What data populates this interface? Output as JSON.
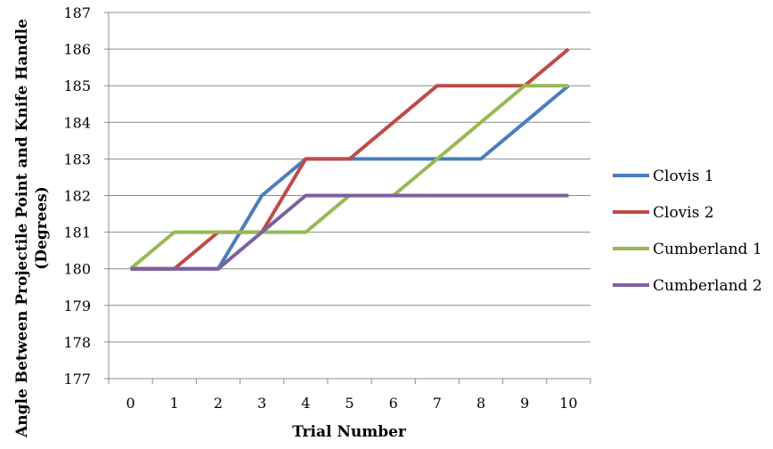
{
  "chart_data": {
    "type": "line",
    "title": "",
    "xlabel": "Trial Number",
    "ylabel_line1": "Angle Between Projectile Point and Knife Handle",
    "ylabel_line2": "(Degrees)",
    "x": [
      0,
      1,
      2,
      3,
      4,
      5,
      6,
      7,
      8,
      9,
      10
    ],
    "x_tick_labels": [
      "0",
      "1",
      "2",
      "3",
      "4",
      "5",
      "6",
      "7",
      "8",
      "9",
      "10"
    ],
    "ylim": [
      177,
      187
    ],
    "y_tick_labels": [
      "177",
      "178",
      "179",
      "180",
      "181",
      "182",
      "183",
      "184",
      "185",
      "186",
      "187"
    ],
    "grid": "horizontal",
    "legend_position": "right",
    "series": [
      {
        "name": "Clovis 1",
        "color": "#4a7ebb",
        "values": [
          180,
          180,
          180,
          182,
          183,
          183,
          183,
          183,
          183,
          184,
          185
        ]
      },
      {
        "name": "Clovis 2",
        "color": "#be4b48",
        "values": [
          180,
          180,
          181,
          181,
          183,
          183,
          184,
          185,
          185,
          185,
          186
        ]
      },
      {
        "name": "Cumberland 1",
        "color": "#98b954",
        "values": [
          180,
          181,
          181,
          181,
          181,
          182,
          182,
          183,
          184,
          185,
          185
        ]
      },
      {
        "name": "Cumberland 2",
        "color": "#7d60a0",
        "values": [
          180,
          180,
          180,
          181,
          182,
          182,
          182,
          182,
          182,
          182,
          182
        ]
      }
    ]
  }
}
